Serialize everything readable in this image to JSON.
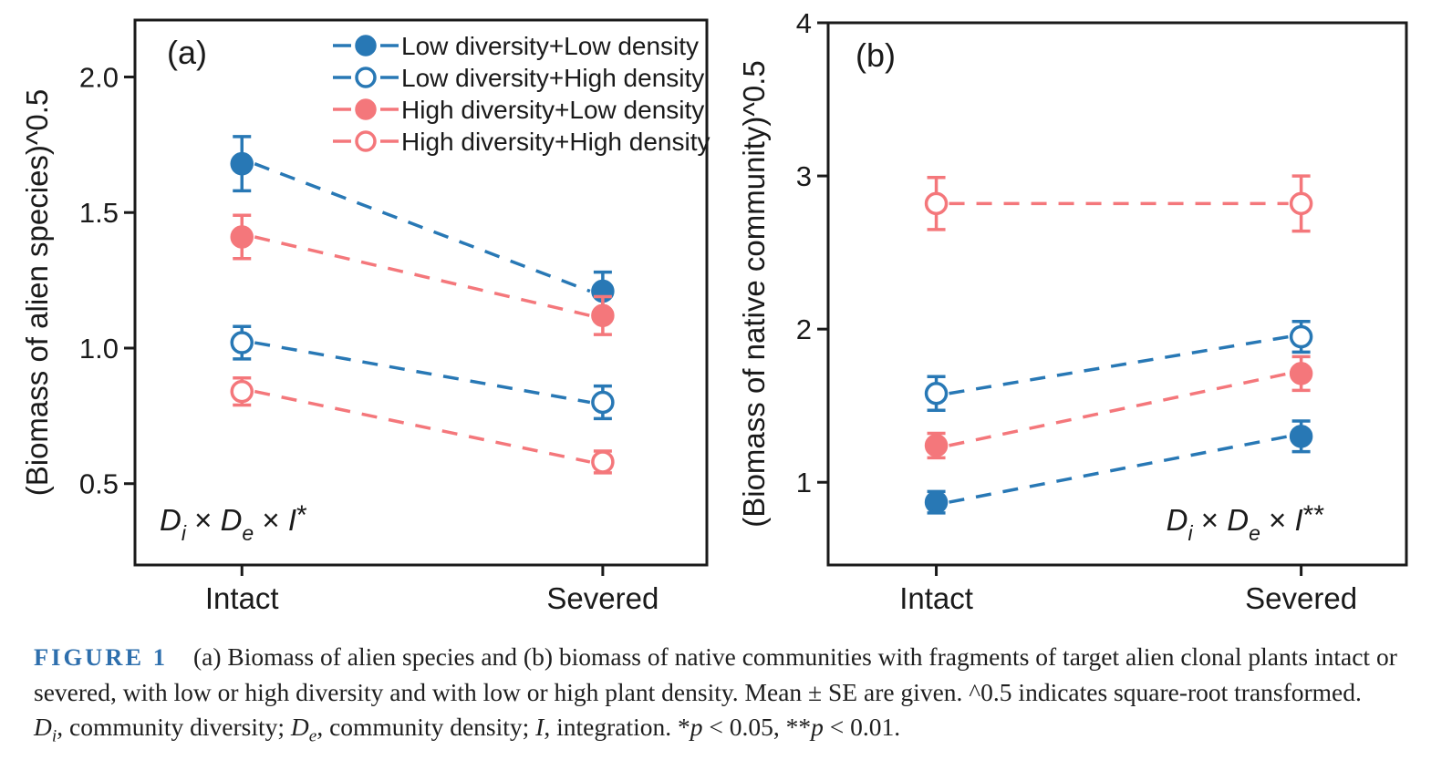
{
  "colors": {
    "blue": "#2878b5",
    "red": "#f4777b",
    "axis": "#1a1a1a",
    "figure_label_blue": "#2e6fad"
  },
  "chart_data": [
    {
      "type": "scatter",
      "panel_label": "(a)",
      "categories": [
        "Intact",
        "Severed"
      ],
      "ylabel": "(Biomass of alien species)^0.5",
      "yticks": [
        0.5,
        1.0,
        1.5,
        2.0
      ],
      "ytick_labels": [
        "0.5",
        "1.0",
        "1.5",
        "2.0"
      ],
      "ylim": [
        0.2,
        2.21
      ],
      "grid": false,
      "line_style": "dashed",
      "legend_position": "top-inside",
      "show_legend": true,
      "annotation_anchor": "bottom-left",
      "annotation_segments": [
        {
          "t": "D",
          "style": "italic"
        },
        {
          "t": "i",
          "style": "sub"
        },
        {
          "t": " × "
        },
        {
          "t": "D",
          "style": "italic"
        },
        {
          "t": "e",
          "style": "sub"
        },
        {
          "t": " × "
        },
        {
          "t": "I",
          "style": "italic"
        },
        {
          "t": "*",
          "style": "sup"
        }
      ],
      "series": [
        {
          "name": "Low diversity+Low density",
          "color": "blue",
          "marker": "filled-circle",
          "means": [
            1.68,
            1.21
          ],
          "se": [
            0.1,
            0.07
          ]
        },
        {
          "name": "Low diversity+High density",
          "color": "blue",
          "marker": "open-circle",
          "means": [
            1.02,
            0.8
          ],
          "se": [
            0.06,
            0.06
          ]
        },
        {
          "name": "High diversity+Low density",
          "color": "red",
          "marker": "filled-circle",
          "means": [
            1.41,
            1.12
          ],
          "se": [
            0.08,
            0.07
          ]
        },
        {
          "name": "High diversity+High density",
          "color": "red",
          "marker": "open-circle",
          "means": [
            0.84,
            0.58
          ],
          "se": [
            0.05,
            0.04
          ]
        }
      ]
    },
    {
      "type": "scatter",
      "panel_label": "(b)",
      "categories": [
        "Intact",
        "Severed"
      ],
      "ylabel": "(Biomass of native community)^0.5",
      "yticks": [
        1,
        2,
        3,
        4
      ],
      "ytick_labels": [
        "1",
        "2",
        "3",
        "4"
      ],
      "ylim": [
        0.46,
        4.0
      ],
      "grid": false,
      "line_style": "dashed",
      "legend_position": null,
      "show_legend": false,
      "annotation_anchor": "bottom-right",
      "annotation_segments": [
        {
          "t": "D",
          "style": "italic"
        },
        {
          "t": "i",
          "style": "sub"
        },
        {
          "t": " × "
        },
        {
          "t": "D",
          "style": "italic"
        },
        {
          "t": "e",
          "style": "sub"
        },
        {
          "t": " × "
        },
        {
          "t": "I",
          "style": "italic"
        },
        {
          "t": "**",
          "style": "sup"
        }
      ],
      "series": [
        {
          "name": "Low diversity+Low density",
          "color": "blue",
          "marker": "filled-circle",
          "means": [
            0.87,
            1.3
          ],
          "se": [
            0.07,
            0.1
          ]
        },
        {
          "name": "Low diversity+High density",
          "color": "blue",
          "marker": "open-circle",
          "means": [
            1.58,
            1.95
          ],
          "se": [
            0.11,
            0.1
          ]
        },
        {
          "name": "High diversity+Low density",
          "color": "red",
          "marker": "filled-circle",
          "means": [
            1.24,
            1.71
          ],
          "se": [
            0.08,
            0.11
          ]
        },
        {
          "name": "High diversity+High density",
          "color": "red",
          "marker": "open-circle",
          "means": [
            2.82,
            2.82
          ],
          "se": [
            0.17,
            0.18
          ]
        }
      ]
    }
  ],
  "legend": {
    "entries": [
      {
        "label": "Low diversity+Low density",
        "color": "blue",
        "marker": "filled-circle"
      },
      {
        "label": "Low diversity+High density",
        "color": "blue",
        "marker": "open-circle"
      },
      {
        "label": "High diversity+Low density",
        "color": "red",
        "marker": "filled-circle"
      },
      {
        "label": "High diversity+High density",
        "color": "red",
        "marker": "open-circle"
      }
    ]
  },
  "caption": {
    "label": "FIGURE 1",
    "lines": [
      [
        {
          "t": "(a) Biomass of alien species and (b) biomass of native communities with fragments of target alien clonal plants intact or"
        }
      ],
      [
        {
          "t": "severed, with low or high diversity and with low or high plant density. Mean ± SE are given. ^0.5 indicates square-root transformed."
        }
      ],
      [
        {
          "t": "D",
          "style": "italic"
        },
        {
          "t": "i",
          "style": "sub"
        },
        {
          "t": ", community diversity; "
        },
        {
          "t": "D",
          "style": "italic"
        },
        {
          "t": "e",
          "style": "sub"
        },
        {
          "t": ", community density; "
        },
        {
          "t": "I",
          "style": "italic"
        },
        {
          "t": ", integration. *"
        },
        {
          "t": "p",
          "style": "italic"
        },
        {
          "t": " < 0.05, **"
        },
        {
          "t": "p",
          "style": "italic"
        },
        {
          "t": " < 0.01."
        }
      ]
    ]
  }
}
